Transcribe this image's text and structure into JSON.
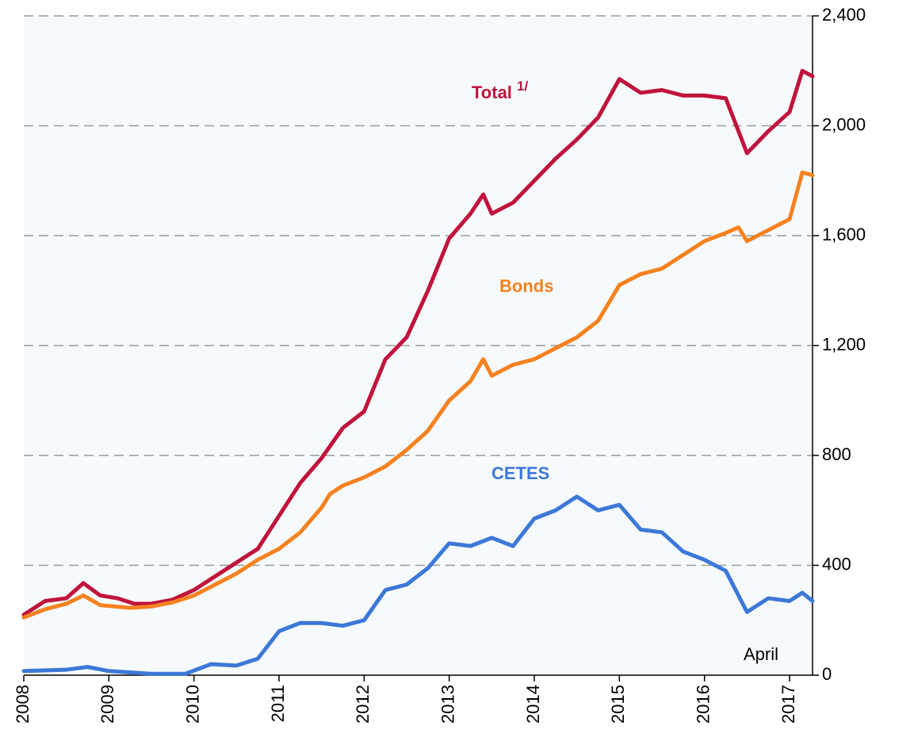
{
  "chart_data": {
    "type": "line",
    "xlim": [
      2008,
      2017.27
    ],
    "xticks": [
      2008,
      2009,
      2010,
      2011,
      2012,
      2013,
      2014,
      2015,
      2016,
      2017
    ],
    "ylim": [
      0,
      2400
    ],
    "yticks": [
      0,
      {
        "value": 400,
        "label": "400"
      },
      {
        "value": 800,
        "label": "800"
      },
      {
        "value": 1200,
        "label": "1,200"
      },
      {
        "value": 1600,
        "label": "1,600"
      },
      {
        "value": 2000,
        "label": "2,000"
      },
      {
        "value": 2400,
        "label": "2,400"
      }
    ],
    "grid": true,
    "y_axis_side": "right",
    "annotation": "April",
    "series": [
      {
        "name": "Total",
        "footnote_mark": "1/",
        "color": "#c0143c",
        "x": [
          2008.0,
          2008.25,
          2008.5,
          2008.7,
          2008.9,
          2009.1,
          2009.3,
          2009.5,
          2009.75,
          2010.0,
          2010.25,
          2010.5,
          2010.75,
          2011.0,
          2011.25,
          2011.5,
          2011.75,
          2012.0,
          2012.25,
          2012.5,
          2012.75,
          2013.0,
          2013.25,
          2013.4,
          2013.5,
          2013.75,
          2014.0,
          2014.25,
          2014.5,
          2014.75,
          2015.0,
          2015.25,
          2015.5,
          2015.75,
          2016.0,
          2016.25,
          2016.5,
          2016.75,
          2017.0,
          2017.15,
          2017.27
        ],
        "values": [
          220,
          270,
          280,
          335,
          290,
          280,
          260,
          260,
          275,
          310,
          360,
          410,
          460,
          580,
          700,
          790,
          900,
          960,
          1150,
          1230,
          1400,
          1590,
          1680,
          1750,
          1680,
          1720,
          1800,
          1880,
          1950,
          2030,
          2170,
          2120,
          2130,
          2110,
          2110,
          2100,
          1900,
          1980,
          2050,
          2200,
          2180
        ]
      },
      {
        "name": "Bonds",
        "color": "#f58220",
        "x": [
          2008.0,
          2008.25,
          2008.5,
          2008.7,
          2008.9,
          2009.25,
          2009.5,
          2009.75,
          2010.0,
          2010.25,
          2010.5,
          2010.75,
          2011.0,
          2011.25,
          2011.5,
          2011.6,
          2011.75,
          2012.0,
          2012.25,
          2012.5,
          2012.75,
          2013.0,
          2013.25,
          2013.4,
          2013.5,
          2013.75,
          2014.0,
          2014.25,
          2014.5,
          2014.75,
          2015.0,
          2015.25,
          2015.5,
          2015.75,
          2016.0,
          2016.25,
          2016.4,
          2016.5,
          2016.75,
          2017.0,
          2017.15,
          2017.27
        ],
        "values": [
          210,
          240,
          260,
          290,
          255,
          245,
          250,
          265,
          290,
          330,
          370,
          420,
          460,
          520,
          610,
          660,
          690,
          720,
          760,
          820,
          890,
          1000,
          1070,
          1150,
          1090,
          1130,
          1150,
          1190,
          1230,
          1290,
          1420,
          1460,
          1480,
          1530,
          1580,
          1610,
          1630,
          1580,
          1620,
          1660,
          1830,
          1820
        ]
      },
      {
        "name": "CETES",
        "color": "#3c78d8",
        "x": [
          2008.0,
          2008.5,
          2008.75,
          2009.0,
          2009.5,
          2009.9,
          2010.2,
          2010.5,
          2010.75,
          2011.0,
          2011.25,
          2011.5,
          2011.75,
          2012.0,
          2012.25,
          2012.5,
          2012.75,
          2013.0,
          2013.25,
          2013.5,
          2013.75,
          2014.0,
          2014.25,
          2014.5,
          2014.75,
          2015.0,
          2015.25,
          2015.5,
          2015.75,
          2016.0,
          2016.25,
          2016.5,
          2016.75,
          2017.0,
          2017.15,
          2017.27
        ],
        "values": [
          15,
          20,
          30,
          15,
          5,
          5,
          40,
          35,
          60,
          160,
          190,
          190,
          180,
          200,
          310,
          330,
          390,
          480,
          470,
          500,
          470,
          570,
          600,
          650,
          600,
          620,
          530,
          520,
          450,
          420,
          380,
          230,
          280,
          270,
          300,
          270
        ]
      }
    ]
  }
}
